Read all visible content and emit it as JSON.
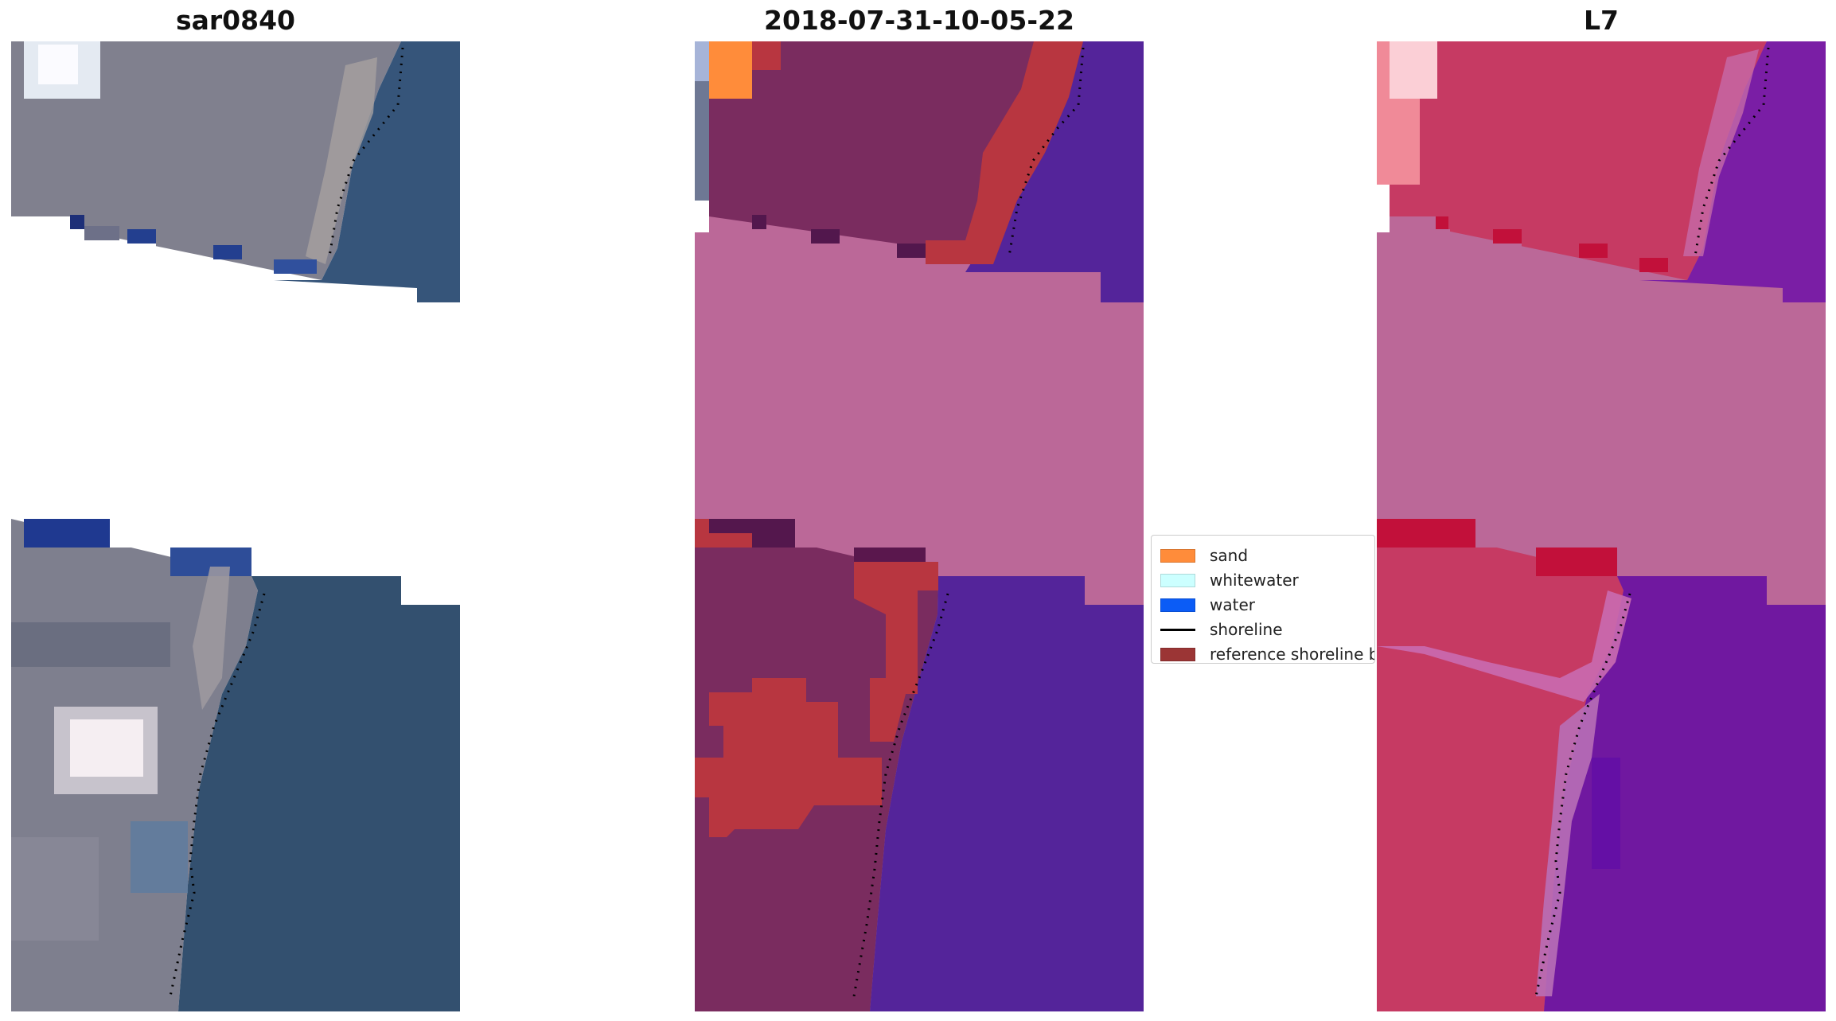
{
  "panels": [
    {
      "title": "sar0840"
    },
    {
      "title": "2018-07-31-10-05-22"
    },
    {
      "title": "L7"
    }
  ],
  "legend": {
    "items": [
      {
        "label": "sand",
        "kind": "patch",
        "color": "#ff8c3a"
      },
      {
        "label": "whitewater",
        "kind": "patch",
        "color": "#ccffff"
      },
      {
        "label": "water",
        "kind": "patch",
        "color": "#0b5cf6"
      },
      {
        "label": "shoreline",
        "kind": "line",
        "color": "#000000"
      },
      {
        "label": "reference shoreline b",
        "kind": "patch",
        "color": "#9b3535"
      }
    ]
  },
  "colors": {
    "rgb_land": "#7e7e8c",
    "rgb_water": "#33506f",
    "class_land": "#7a2c5f",
    "class_water": "#54249a",
    "class_buffer": "#b83640",
    "class_nodata": "#bb6898",
    "ndwi_land": "#c63a63",
    "ndwi_water": "#7018a0",
    "ndwi_nodata": "#bb6898"
  }
}
